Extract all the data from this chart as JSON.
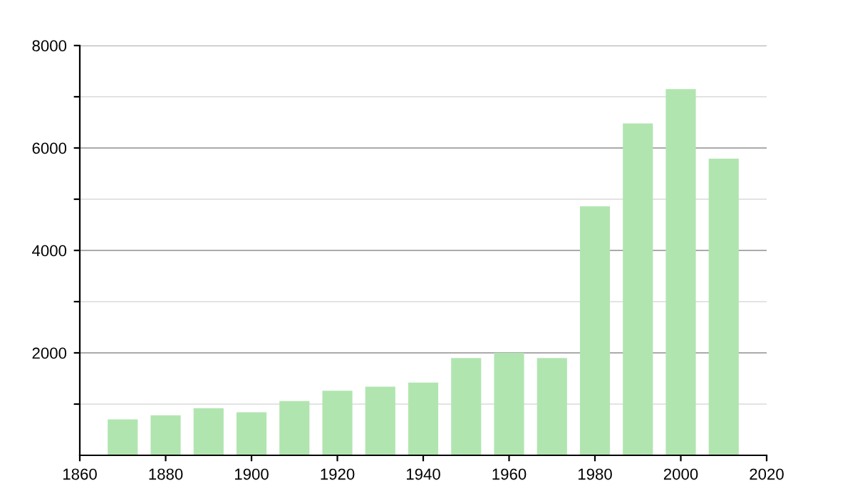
{
  "chart_data": {
    "type": "bar",
    "x": [
      1870,
      1880,
      1890,
      1900,
      1910,
      1920,
      1930,
      1940,
      1950,
      1960,
      1970,
      1980,
      1990,
      2000,
      2010
    ],
    "values": [
      700,
      780,
      920,
      840,
      1060,
      1260,
      1340,
      1420,
      1900,
      2000,
      1900,
      4860,
      6480,
      7150,
      5790
    ],
    "color": "#b1e5b0",
    "xlim": [
      1860,
      2020
    ],
    "xticks": [
      1860,
      1880,
      1900,
      1920,
      1940,
      1960,
      1980,
      2000,
      2020
    ],
    "ylim": [
      0,
      8000
    ],
    "yticks": [
      {
        "value": 1000,
        "label": null
      },
      2000,
      {
        "value": 3000,
        "label": null
      },
      4000,
      {
        "value": 5000,
        "label": null
      },
      6000,
      {
        "value": 7000,
        "label": null
      },
      8000
    ],
    "grid": "y",
    "legend": false
  }
}
